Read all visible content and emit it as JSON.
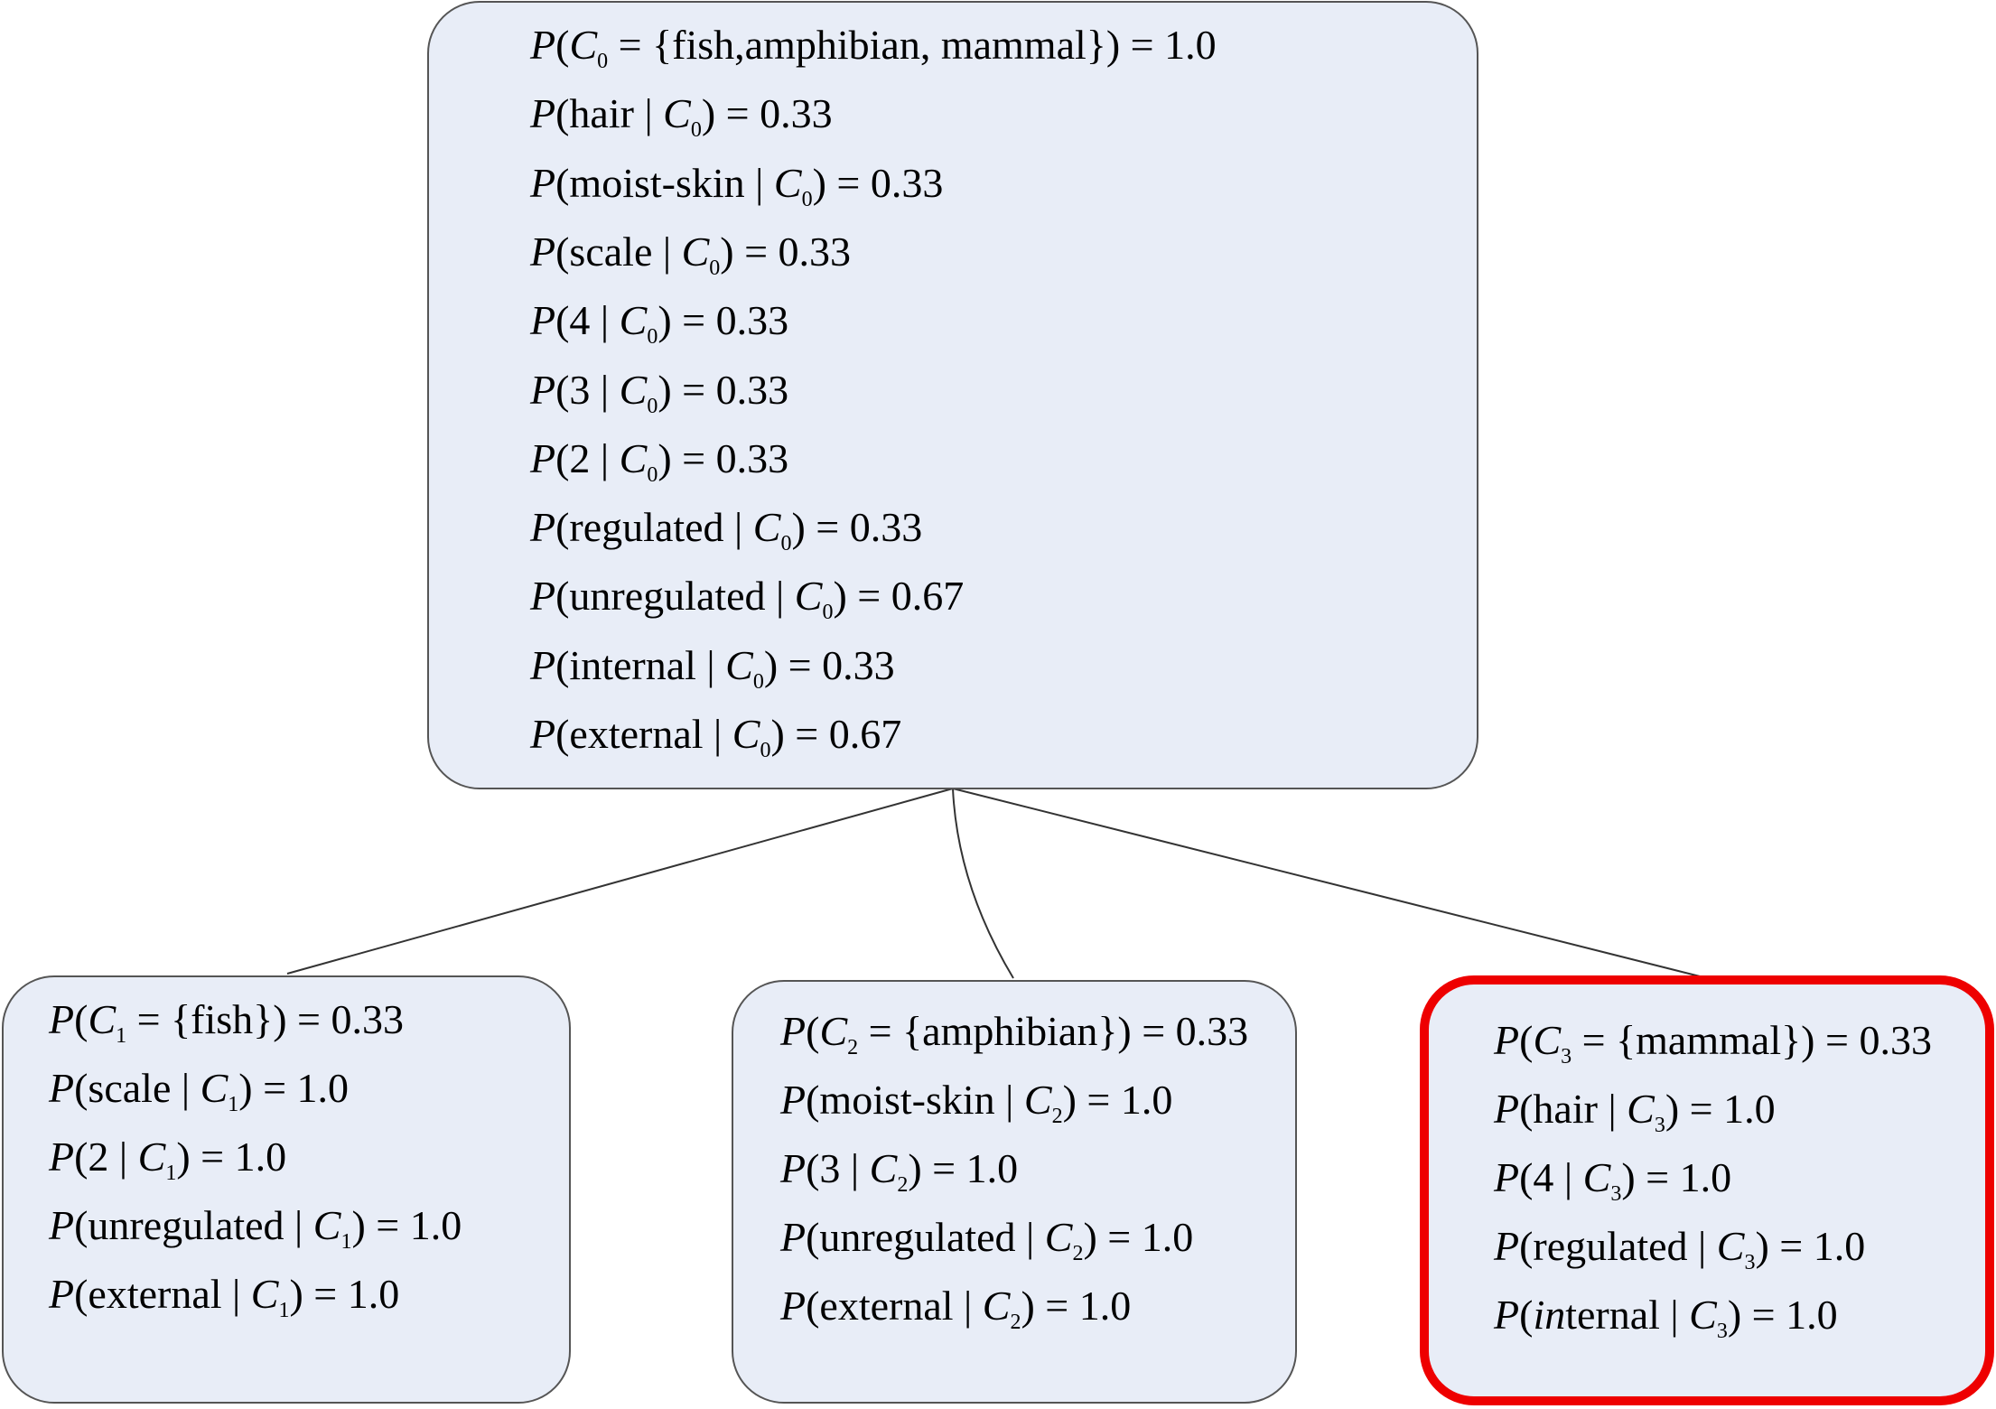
{
  "nodes": [
    {
      "id": "c0",
      "lines": [
        [
          {
            "t": "P",
            "i": true
          },
          {
            "t": "("
          },
          {
            "t": "C",
            "i": true
          },
          {
            "t": "0",
            "sub": true
          },
          {
            "t": " = {fish,amphibian, mammal}) = 1.0"
          }
        ],
        [
          {
            "t": "P",
            "i": true
          },
          {
            "t": "(hair | "
          },
          {
            "t": "C",
            "i": true
          },
          {
            "t": "0",
            "sub": true
          },
          {
            "t": ") = 0.33"
          }
        ],
        [
          {
            "t": "P",
            "i": true
          },
          {
            "t": "(moist-skin | "
          },
          {
            "t": "C",
            "i": true
          },
          {
            "t": "0",
            "sub": true
          },
          {
            "t": ") = 0.33"
          }
        ],
        [
          {
            "t": "P",
            "i": true
          },
          {
            "t": "(scale | "
          },
          {
            "t": "C",
            "i": true
          },
          {
            "t": "0",
            "sub": true
          },
          {
            "t": ") = 0.33"
          }
        ],
        [
          {
            "t": "P",
            "i": true
          },
          {
            "t": "(4 | "
          },
          {
            "t": "C",
            "i": true
          },
          {
            "t": "0",
            "sub": true
          },
          {
            "t": ") = 0.33"
          }
        ],
        [
          {
            "t": "P",
            "i": true
          },
          {
            "t": "(3 | "
          },
          {
            "t": "C",
            "i": true
          },
          {
            "t": "0",
            "sub": true
          },
          {
            "t": ") = 0.33"
          }
        ],
        [
          {
            "t": "P",
            "i": true
          },
          {
            "t": "(2 | "
          },
          {
            "t": "C",
            "i": true
          },
          {
            "t": "0",
            "sub": true
          },
          {
            "t": ") = 0.33"
          }
        ],
        [
          {
            "t": "P",
            "i": true
          },
          {
            "t": "(regulated | "
          },
          {
            "t": "C",
            "i": true
          },
          {
            "t": "0",
            "sub": true
          },
          {
            "t": ") = 0.33"
          }
        ],
        [
          {
            "t": "P",
            "i": true
          },
          {
            "t": "(unregulated | "
          },
          {
            "t": "C",
            "i": true
          },
          {
            "t": "0",
            "sub": true
          },
          {
            "t": ") = 0.67"
          }
        ],
        [
          {
            "t": "P",
            "i": true
          },
          {
            "t": "(internal | "
          },
          {
            "t": "C",
            "i": true
          },
          {
            "t": "0",
            "sub": true
          },
          {
            "t": ") = 0.33"
          }
        ],
        [
          {
            "t": "P",
            "i": true
          },
          {
            "t": "(external | "
          },
          {
            "t": "C",
            "i": true
          },
          {
            "t": "0",
            "sub": true
          },
          {
            "t": ") = 0.67"
          }
        ]
      ]
    },
    {
      "id": "c1",
      "lines": [
        [
          {
            "t": "P",
            "i": true
          },
          {
            "t": "("
          },
          {
            "t": "C",
            "i": true
          },
          {
            "t": "1",
            "sub": true
          },
          {
            "t": " = {fish}) = 0.33"
          }
        ],
        [
          {
            "t": "P",
            "i": true
          },
          {
            "t": "(scale | "
          },
          {
            "t": "C",
            "i": true
          },
          {
            "t": "1",
            "sub": true
          },
          {
            "t": ") = 1.0"
          }
        ],
        [
          {
            "t": "P",
            "i": true
          },
          {
            "t": "(2 | "
          },
          {
            "t": "C",
            "i": true
          },
          {
            "t": "1",
            "sub": true
          },
          {
            "t": ") = 1.0"
          }
        ],
        [
          {
            "t": "P",
            "i": true
          },
          {
            "t": "(unregulated | "
          },
          {
            "t": "C",
            "i": true
          },
          {
            "t": "1",
            "sub": true
          },
          {
            "t": ") = 1.0"
          }
        ],
        [
          {
            "t": "P",
            "i": true
          },
          {
            "t": "(external | "
          },
          {
            "t": "C",
            "i": true
          },
          {
            "t": "1",
            "sub": true
          },
          {
            "t": ") = 1.0"
          }
        ]
      ]
    },
    {
      "id": "c2",
      "lines": [
        [
          {
            "t": "P",
            "i": true
          },
          {
            "t": "("
          },
          {
            "t": "C",
            "i": true
          },
          {
            "t": "2",
            "sub": true
          },
          {
            "t": " = {amphibian}) = 0.33"
          }
        ],
        [
          {
            "t": "P",
            "i": true
          },
          {
            "t": "(moist-skin | "
          },
          {
            "t": "C",
            "i": true
          },
          {
            "t": "2",
            "sub": true
          },
          {
            "t": ") = 1.0"
          }
        ],
        [
          {
            "t": "P",
            "i": true
          },
          {
            "t": "(3 | "
          },
          {
            "t": "C",
            "i": true
          },
          {
            "t": "2",
            "sub": true
          },
          {
            "t": ") = 1.0"
          }
        ],
        [
          {
            "t": "P",
            "i": true
          },
          {
            "t": "(unregulated | "
          },
          {
            "t": "C",
            "i": true
          },
          {
            "t": "2",
            "sub": true
          },
          {
            "t": ") = 1.0"
          }
        ],
        [
          {
            "t": "P",
            "i": true
          },
          {
            "t": "(external | "
          },
          {
            "t": "C",
            "i": true
          },
          {
            "t": "2",
            "sub": true
          },
          {
            "t": ") = 1.0"
          }
        ]
      ]
    },
    {
      "id": "c3",
      "lines": [
        [
          {
            "t": "P",
            "i": true
          },
          {
            "t": "("
          },
          {
            "t": "C",
            "i": true
          },
          {
            "t": "3",
            "sub": true
          },
          {
            "t": " = {mammal}) = 0.33"
          }
        ],
        [
          {
            "t": "P",
            "i": true
          },
          {
            "t": "(hair | "
          },
          {
            "t": "C",
            "i": true
          },
          {
            "t": "3",
            "sub": true
          },
          {
            "t": ") = 1.0"
          }
        ],
        [
          {
            "t": "P",
            "i": true
          },
          {
            "t": "(4 | "
          },
          {
            "t": "C",
            "i": true
          },
          {
            "t": "3",
            "sub": true
          },
          {
            "t": ") = 1.0"
          }
        ],
        [
          {
            "t": "P",
            "i": true
          },
          {
            "t": "(regulated | "
          },
          {
            "t": "C",
            "i": true
          },
          {
            "t": "3",
            "sub": true
          },
          {
            "t": ") = 1.0"
          }
        ],
        [
          {
            "t": "P",
            "i": true
          },
          {
            "t": "("
          },
          {
            "t": "in",
            "i": true
          },
          {
            "t": "ternal | "
          },
          {
            "t": "C",
            "i": true
          },
          {
            "t": "3",
            "sub": true
          },
          {
            "t": ") = 1.0"
          }
        ]
      ]
    }
  ],
  "colors": {
    "node_fill": "#e8edf7",
    "node_border": "#555555",
    "highlight_border": "#ee0000",
    "edge": "#333333"
  }
}
